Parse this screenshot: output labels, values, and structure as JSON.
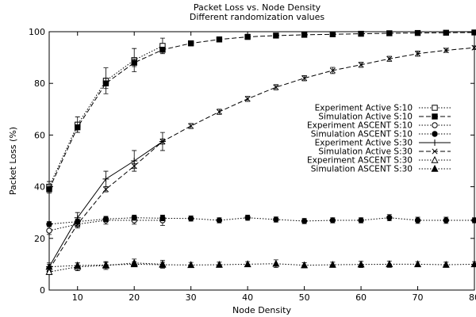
{
  "chart_data": {
    "type": "line",
    "title": "Packet Loss vs. Node Density",
    "subtitle": "Different randomization values",
    "xlabel": "Node Density",
    "ylabel": "Packet Loss (%)",
    "xlim": [
      5,
      80
    ],
    "ylim": [
      0,
      100
    ],
    "x_ticks": [
      10,
      20,
      30,
      40,
      50,
      60,
      70,
      80
    ],
    "y_ticks": [
      0,
      20,
      40,
      60,
      80,
      100
    ],
    "grid": false,
    "legend_position": "right-middle",
    "series": [
      {
        "name": "Experiment Active S:10",
        "marker": "open-square",
        "dash": "dotted",
        "x": [
          5,
          10,
          15,
          20,
          25
        ],
        "y": [
          40,
          64,
          81,
          89,
          94.5
        ],
        "err": [
          2,
          3,
          5,
          4.5,
          3
        ]
      },
      {
        "name": "Simulation Active S:10",
        "marker": "filled-square",
        "dash": "dashed",
        "x": [
          5,
          10,
          15,
          20,
          25,
          30,
          35,
          40,
          45,
          50,
          55,
          60,
          65,
          70,
          75,
          80
        ],
        "y": [
          39,
          63,
          80,
          88,
          93,
          95.5,
          97,
          98,
          98.5,
          98.8,
          99,
          99.2,
          99.4,
          99.5,
          99.6,
          99.7
        ],
        "err": [
          1.5,
          2,
          2,
          1.5,
          1,
          1,
          1,
          1,
          0.8,
          0.8,
          0.6,
          0.5,
          0.5,
          0.4,
          0.4,
          0.3
        ]
      },
      {
        "name": "Experiment ASCENT S:10",
        "marker": "open-circle",
        "dash": "dotted",
        "x": [
          5,
          10,
          15,
          20,
          25
        ],
        "y": [
          23,
          25.5,
          27,
          27,
          27
        ],
        "err": [
          1.5,
          1.5,
          1.5,
          1.5,
          2
        ]
      },
      {
        "name": "Simulation ASCENT S:10",
        "marker": "filled-circle",
        "dash": "dotted",
        "x": [
          5,
          10,
          15,
          20,
          25,
          30,
          35,
          40,
          45,
          50,
          55,
          60,
          65,
          70,
          75,
          80
        ],
        "y": [
          25.5,
          26.5,
          27.5,
          28,
          27.8,
          27.7,
          27,
          28,
          27.3,
          26.7,
          27,
          27,
          28,
          27,
          27,
          27
        ],
        "err": [
          1,
          1,
          1,
          1,
          1,
          1,
          1,
          1,
          1,
          1,
          1,
          1,
          1.2,
          1.2,
          1.2,
          1
        ]
      },
      {
        "name": "Experiment Active S:30",
        "marker": "plus",
        "dash": "solid",
        "x": [
          5,
          10,
          15,
          20,
          25
        ],
        "y": [
          9,
          28,
          43,
          50,
          57.5
        ],
        "err": [
          1.5,
          2,
          3,
          4,
          3.5
        ]
      },
      {
        "name": "Simulation Active S:30",
        "marker": "cross",
        "dash": "dashed",
        "x": [
          5,
          10,
          15,
          20,
          25,
          30,
          35,
          40,
          45,
          50,
          55,
          60,
          65,
          70,
          75,
          80
        ],
        "y": [
          8,
          25.5,
          39,
          48,
          57.5,
          63.5,
          69,
          74,
          78.5,
          82,
          85,
          87.2,
          89.5,
          91.5,
          92.8,
          93.8
        ],
        "err": [
          1,
          1,
          1,
          1,
          1,
          1,
          1,
          1,
          1,
          1,
          1.2,
          1,
          1,
          1,
          0.8,
          0.7
        ]
      },
      {
        "name": "Experiment ASCENT S:30",
        "marker": "open-triangle",
        "dash": "dotted",
        "x": [
          5,
          10,
          15,
          20,
          25
        ],
        "y": [
          7,
          9,
          9.5,
          10.5,
          10
        ],
        "err": [
          1,
          1.5,
          1.5,
          1.5,
          1.5
        ]
      },
      {
        "name": "Simulation ASCENT S:30",
        "marker": "filled-triangle",
        "dash": "dotted",
        "x": [
          5,
          10,
          15,
          20,
          25,
          30,
          35,
          40,
          45,
          50,
          55,
          60,
          65,
          70,
          75,
          80
        ],
        "y": [
          9,
          9.5,
          9.7,
          10,
          9.8,
          9.7,
          9.8,
          10,
          10.2,
          9.6,
          9.8,
          9.9,
          10,
          10,
          9.8,
          10
        ],
        "err": [
          1,
          1,
          1,
          1,
          1,
          1,
          1,
          1,
          1.5,
          1,
          1,
          1.2,
          1.2,
          1,
          1,
          1
        ]
      }
    ]
  }
}
